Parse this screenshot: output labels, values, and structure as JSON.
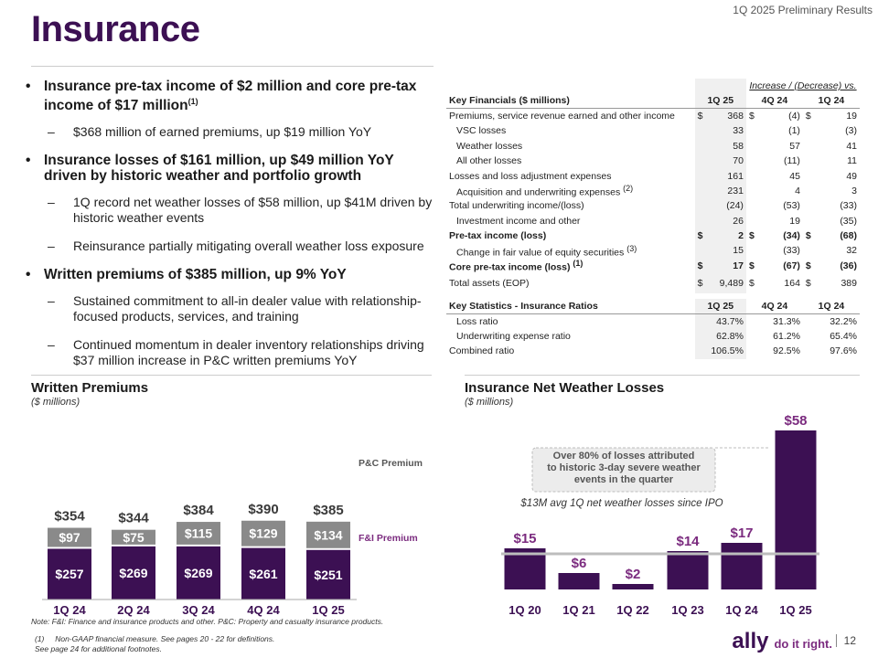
{
  "header": {
    "subtitle": "1Q 2025 Preliminary Results",
    "title": "Insurance"
  },
  "bullets": [
    {
      "level": 1,
      "text": "Insurance pre-tax income of $2 million and core pre-tax income of $17 million",
      "sup": "(1)"
    },
    {
      "level": 2,
      "text": "$368 million of earned premiums, up $19 million YoY"
    },
    {
      "level": 1,
      "text": "Insurance losses of $161 million, up $49 million YoY driven by historic weather and portfolio growth"
    },
    {
      "level": 2,
      "text": "1Q record net weather losses of $58 million, up $41M driven by historic weather events"
    },
    {
      "level": 2,
      "text": "Reinsurance partially mitigating overall weather loss exposure"
    },
    {
      "level": 1,
      "text": "Written premiums of $385 million, up 9% YoY"
    },
    {
      "level": 2,
      "text": "Sustained commitment to all-in dealer value with relationship-focused products, services, and training"
    },
    {
      "level": 2,
      "text": "Continued momentum in dealer inventory relationships driving $37 million increase in P&C written premiums YoY"
    }
  ],
  "financials": {
    "increase_header": "Increase / (Decrease) vs.",
    "header": [
      "Key Financials ($ millions)",
      "1Q 25",
      "4Q 24",
      "1Q 24"
    ],
    "rows": [
      {
        "label": "Premiums, service revenue earned and other income",
        "cur": [
          "$",
          "368"
        ],
        "v4q": [
          "$",
          "(4)"
        ],
        "v1q": [
          "$",
          "19"
        ],
        "indent": false,
        "bold": false
      },
      {
        "label": "VSC losses",
        "cur": [
          "",
          "33"
        ],
        "v4q": [
          "",
          "(1)"
        ],
        "v1q": [
          "",
          "(3)"
        ],
        "indent": true,
        "bold": false
      },
      {
        "label": "Weather losses",
        "cur": [
          "",
          "58"
        ],
        "v4q": [
          "",
          "57"
        ],
        "v1q": [
          "",
          "41"
        ],
        "indent": true,
        "bold": false
      },
      {
        "label": "All other losses",
        "cur": [
          "",
          "70"
        ],
        "v4q": [
          "",
          "(11)"
        ],
        "v1q": [
          "",
          "11"
        ],
        "indent": true,
        "bold": false
      },
      {
        "label": "Losses and loss adjustment expenses",
        "cur": [
          "",
          "161"
        ],
        "v4q": [
          "",
          "45"
        ],
        "v1q": [
          "",
          "49"
        ],
        "indent": false,
        "bold": false
      },
      {
        "label": "Acquisition and underwriting expenses",
        "sup": "(2)",
        "cur": [
          "",
          "231"
        ],
        "v4q": [
          "",
          "4"
        ],
        "v1q": [
          "",
          "3"
        ],
        "indent": true,
        "bold": false
      },
      {
        "label": "Total underwriting income/(loss)",
        "cur": [
          "",
          "(24)"
        ],
        "v4q": [
          "",
          "(53)"
        ],
        "v1q": [
          "",
          "(33)"
        ],
        "indent": false,
        "bold": false
      },
      {
        "label": "Investment income and other",
        "cur": [
          "",
          "26"
        ],
        "v4q": [
          "",
          "19"
        ],
        "v1q": [
          "",
          "(35)"
        ],
        "indent": true,
        "bold": false
      },
      {
        "label": "Pre-tax income (loss)",
        "cur": [
          "$",
          "2"
        ],
        "v4q": [
          "$",
          "(34)"
        ],
        "v1q": [
          "$",
          "(68)"
        ],
        "indent": false,
        "bold": true
      },
      {
        "label": "Change in fair value of equity securities",
        "sup": "(3)",
        "cur": [
          "",
          "15"
        ],
        "v4q": [
          "",
          "(33)"
        ],
        "v1q": [
          "",
          "32"
        ],
        "indent": true,
        "bold": false
      },
      {
        "label": "Core pre-tax income (loss)",
        "sup": "(1)",
        "cur": [
          "$",
          "17"
        ],
        "v4q": [
          "$",
          "(67)"
        ],
        "v1q": [
          "$",
          "(36)"
        ],
        "indent": false,
        "bold": true
      },
      {
        "label": "Total assets (EOP)",
        "cur": [
          "$",
          "9,489"
        ],
        "v4q": [
          "$",
          "164"
        ],
        "v1q": [
          "$",
          "389"
        ],
        "indent": false,
        "bold": false
      }
    ],
    "stats_header": [
      "Key Statistics - Insurance Ratios",
      "1Q 25",
      "4Q 24",
      "1Q 24"
    ],
    "stats": [
      {
        "label": "Loss ratio",
        "v": [
          "43.7%",
          "31.3%",
          "32.2%"
        ],
        "indent": true
      },
      {
        "label": "Underwriting expense ratio",
        "v": [
          "62.8%",
          "61.2%",
          "65.4%"
        ],
        "indent": true
      },
      {
        "label": "Combined ratio",
        "v": [
          "106.5%",
          "92.5%",
          "97.6%"
        ],
        "indent": false
      }
    ]
  },
  "chart_data": [
    {
      "type": "bar",
      "title": "Written Premiums",
      "subtitle": "($ millions)",
      "categories": [
        "1Q 24",
        "2Q 24",
        "3Q 24",
        "4Q 24",
        "1Q 25"
      ],
      "series": [
        {
          "name": "F&I Premium",
          "values": [
            257,
            269,
            269,
            261,
            251
          ],
          "labels": [
            "$257",
            "$269",
            "$269",
            "$261",
            "$251"
          ]
        },
        {
          "name": "P&C Premium",
          "values": [
            97,
            75,
            115,
            129,
            134
          ],
          "labels": [
            "$97",
            "$75",
            "$115",
            "$129",
            "$134"
          ]
        }
      ],
      "totals": [
        "$354",
        "$344",
        "$384",
        "$390",
        "$385"
      ],
      "stacked": true
    },
    {
      "type": "bar",
      "title": "Insurance Net Weather Losses",
      "subtitle": "($ millions)",
      "categories": [
        "1Q 20",
        "1Q 21",
        "1Q 22",
        "1Q 23",
        "1Q 24",
        "1Q 25"
      ],
      "values": [
        15,
        6,
        2,
        14,
        17,
        58
      ],
      "labels": [
        "$15",
        "$6",
        "$2",
        "$14",
        "$17",
        "$58"
      ],
      "reference_line": {
        "value": 13,
        "label": "$13M avg 1Q net weather losses since IPO"
      },
      "callout": "Over 80% of losses attributed to historic 3-day severe weather events in the quarter"
    }
  ],
  "colors": {
    "purple": "#3c1053",
    "gray": "#8a8a8a",
    "accent": "#7b2b7f",
    "ref": "#bdbdbd"
  },
  "footnotes": {
    "note": "Note: F&I: Finance and insurance products and other. P&C: Property and casualty insurance products.",
    "fn1_marker": "(1)",
    "fn1": "Non-GAAP financial measure. See pages 20 - 22 for definitions.",
    "fn2": "See page 24 for additional footnotes."
  },
  "footer": {
    "logo": "ally",
    "tagline": "do it right.",
    "page": "12"
  }
}
